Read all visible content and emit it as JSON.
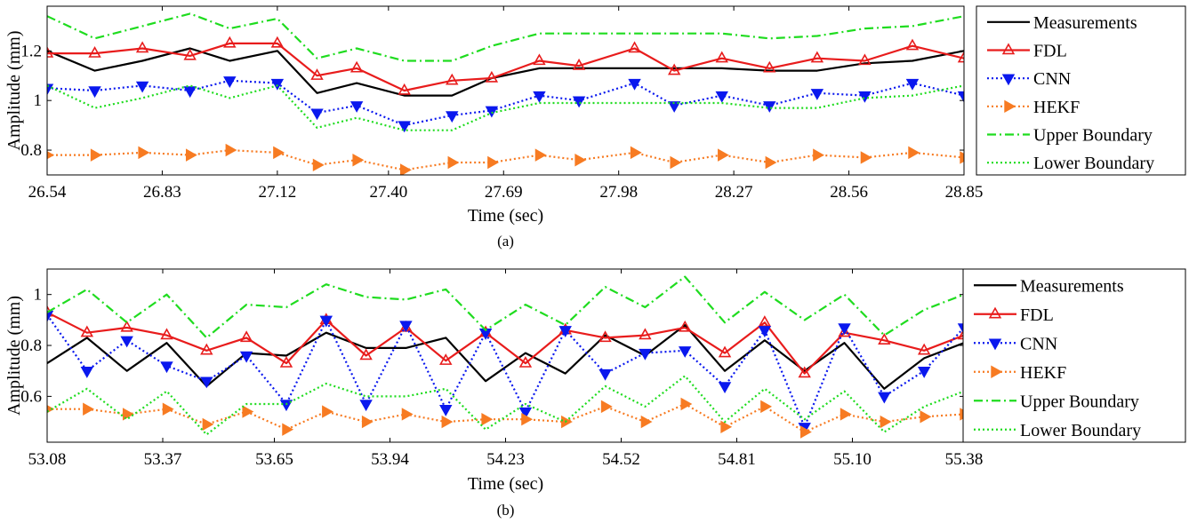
{
  "chart_data": [
    {
      "type": "line",
      "caption": "(a)",
      "xlabel": "Time (sec)",
      "ylabel": "Amplitude (mm)",
      "xlim": [
        26.54,
        28.85
      ],
      "ylim": [
        0.7,
        1.38
      ],
      "xticks": [
        "26.54",
        "26.83",
        "27.12",
        "27.40",
        "27.69",
        "27.98",
        "28.27",
        "28.56",
        "28.85"
      ],
      "yticks": [
        "0.8",
        "1",
        "1.2"
      ],
      "x": [
        26.54,
        26.66,
        26.78,
        26.9,
        27.0,
        27.12,
        27.22,
        27.32,
        27.44,
        27.56,
        27.66,
        27.78,
        27.88,
        28.02,
        28.12,
        28.24,
        28.36,
        28.48,
        28.6,
        28.72,
        28.85
      ],
      "series": [
        {
          "name": "Measurements",
          "color": "#000000",
          "style": "solid",
          "marker": "none",
          "values": [
            1.2,
            1.12,
            1.16,
            1.21,
            1.16,
            1.2,
            1.03,
            1.07,
            1.02,
            1.02,
            1.09,
            1.13,
            1.13,
            1.13,
            1.13,
            1.13,
            1.12,
            1.12,
            1.15,
            1.16,
            1.2
          ]
        },
        {
          "name": "FDL",
          "color": "#e81c1c",
          "style": "solid",
          "marker": "triangle-up",
          "values": [
            1.19,
            1.19,
            1.21,
            1.18,
            1.23,
            1.23,
            1.1,
            1.13,
            1.04,
            1.08,
            1.09,
            1.16,
            1.14,
            1.21,
            1.12,
            1.17,
            1.13,
            1.17,
            1.16,
            1.22,
            1.17
          ]
        },
        {
          "name": "CNN",
          "color": "#0a18ee",
          "style": "dotted",
          "marker": "triangle-down",
          "values": [
            1.05,
            1.04,
            1.06,
            1.04,
            1.08,
            1.07,
            0.95,
            0.98,
            0.9,
            0.94,
            0.96,
            1.02,
            1.0,
            1.07,
            0.98,
            1.02,
            0.98,
            1.03,
            1.02,
            1.07,
            1.02
          ]
        },
        {
          "name": "HEKF",
          "color": "#f77b22",
          "style": "dotted",
          "marker": "triangle-right",
          "values": [
            0.78,
            0.78,
            0.79,
            0.78,
            0.8,
            0.79,
            0.74,
            0.76,
            0.72,
            0.75,
            0.75,
            0.78,
            0.76,
            0.79,
            0.75,
            0.78,
            0.75,
            0.78,
            0.77,
            0.79,
            0.77
          ]
        },
        {
          "name": "Upper Boundary",
          "color": "#1fdc1f",
          "style": "dashdot",
          "marker": "none",
          "values": [
            1.34,
            1.25,
            1.3,
            1.35,
            1.29,
            1.33,
            1.17,
            1.21,
            1.16,
            1.16,
            1.22,
            1.27,
            1.27,
            1.27,
            1.27,
            1.27,
            1.25,
            1.26,
            1.29,
            1.3,
            1.34
          ]
        },
        {
          "name": "Lower Boundary",
          "color": "#1fdc1f",
          "style": "dotted",
          "marker": "none",
          "values": [
            1.06,
            0.97,
            1.01,
            1.06,
            1.01,
            1.06,
            0.89,
            0.93,
            0.88,
            0.88,
            0.95,
            0.99,
            0.99,
            0.99,
            0.99,
            0.99,
            0.97,
            0.97,
            1.01,
            1.02,
            1.06
          ]
        }
      ]
    },
    {
      "type": "line",
      "caption": "(b)",
      "xlabel": "Time (sec)",
      "ylabel": "Amplitude (mm)",
      "xlim": [
        53.08,
        55.38
      ],
      "ylim": [
        0.42,
        1.1
      ],
      "xticks": [
        "53.08",
        "53.37",
        "53.65",
        "53.94",
        "54.23",
        "54.52",
        "54.81",
        "55.10",
        "55.38"
      ],
      "yticks": [
        "0.6",
        "0.8",
        "1"
      ],
      "x": [
        53.08,
        53.18,
        53.28,
        53.38,
        53.48,
        53.58,
        53.68,
        53.78,
        53.88,
        53.98,
        54.08,
        54.18,
        54.28,
        54.38,
        54.48,
        54.58,
        54.68,
        54.78,
        54.88,
        54.98,
        55.08,
        55.18,
        55.28,
        55.38
      ],
      "series": [
        {
          "name": "Measurements",
          "color": "#000000",
          "style": "solid",
          "marker": "none",
          "values": [
            0.73,
            0.83,
            0.7,
            0.81,
            0.64,
            0.77,
            0.76,
            0.85,
            0.79,
            0.79,
            0.83,
            0.66,
            0.77,
            0.69,
            0.84,
            0.76,
            0.88,
            0.7,
            0.82,
            0.7,
            0.81,
            0.63,
            0.75,
            0.81
          ]
        },
        {
          "name": "FDL",
          "color": "#e81c1c",
          "style": "solid",
          "marker": "triangle-up",
          "values": [
            0.93,
            0.85,
            0.87,
            0.84,
            0.78,
            0.83,
            0.73,
            0.9,
            0.76,
            0.87,
            0.74,
            0.85,
            0.73,
            0.86,
            0.83,
            0.84,
            0.87,
            0.77,
            0.89,
            0.69,
            0.85,
            0.82,
            0.78,
            0.84
          ]
        },
        {
          "name": "CNN",
          "color": "#0a18ee",
          "style": "dotted",
          "marker": "triangle-down",
          "values": [
            0.92,
            0.7,
            0.82,
            0.72,
            0.66,
            0.76,
            0.57,
            0.9,
            0.57,
            0.88,
            0.55,
            0.85,
            0.54,
            0.86,
            0.69,
            0.77,
            0.78,
            0.64,
            0.86,
            0.48,
            0.87,
            0.6,
            0.7,
            0.87
          ]
        },
        {
          "name": "HEKF",
          "color": "#f77b22",
          "style": "dotted",
          "marker": "triangle-right",
          "values": [
            0.55,
            0.55,
            0.53,
            0.55,
            0.49,
            0.54,
            0.47,
            0.54,
            0.5,
            0.53,
            0.5,
            0.51,
            0.51,
            0.5,
            0.56,
            0.5,
            0.57,
            0.48,
            0.56,
            0.46,
            0.53,
            0.5,
            0.52,
            0.53
          ]
        },
        {
          "name": "Upper Boundary",
          "color": "#1fdc1f",
          "style": "dashdot",
          "marker": "none",
          "values": [
            0.93,
            1.02,
            0.89,
            1.0,
            0.83,
            0.96,
            0.95,
            1.04,
            0.99,
            0.98,
            1.02,
            0.86,
            0.96,
            0.88,
            1.03,
            0.95,
            1.07,
            0.89,
            1.01,
            0.9,
            1.0,
            0.84,
            0.94,
            1.0
          ]
        },
        {
          "name": "Lower Boundary",
          "color": "#1fdc1f",
          "style": "dotted",
          "marker": "none",
          "values": [
            0.54,
            0.63,
            0.51,
            0.62,
            0.45,
            0.57,
            0.57,
            0.65,
            0.6,
            0.6,
            0.63,
            0.47,
            0.57,
            0.5,
            0.64,
            0.56,
            0.68,
            0.5,
            0.63,
            0.51,
            0.62,
            0.46,
            0.56,
            0.62
          ]
        }
      ]
    }
  ]
}
